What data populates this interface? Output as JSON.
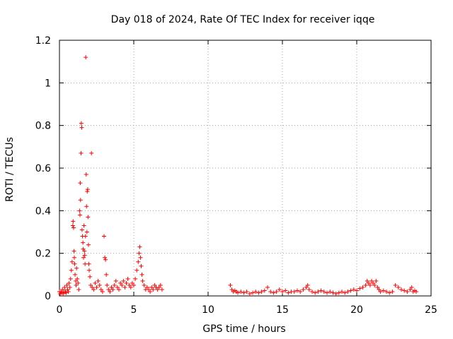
{
  "chart_data": {
    "type": "scatter",
    "title": "Day 018 of 2024, Rate Of TEC Index for receiver iqqe",
    "xlabel": "GPS time / hours",
    "ylabel": "ROTI / TECUs",
    "xlim": [
      0,
      25
    ],
    "ylim": [
      0,
      1.2
    ],
    "xticks": [
      0,
      5,
      10,
      15,
      20,
      25
    ],
    "yticks": [
      0,
      0.2,
      0.4,
      0.6,
      0.8,
      1,
      1.2
    ],
    "xtick_labels": [
      "0",
      "5",
      "10",
      "15",
      "20",
      "25"
    ],
    "ytick_labels": [
      "0",
      "0.2",
      "0.4",
      "0.6",
      "0.8",
      "1",
      "1.2"
    ],
    "grid": true,
    "legend": "none",
    "marker": "plus",
    "color": "#ff0000",
    "series": [
      {
        "points": [
          [
            0.0,
            0.02
          ],
          [
            0.05,
            0.01
          ],
          [
            0.1,
            0.02
          ],
          [
            0.15,
            0.015
          ],
          [
            0.2,
            0.03
          ],
          [
            0.25,
            0.01
          ],
          [
            0.3,
            0.02
          ],
          [
            0.35,
            0.04
          ],
          [
            0.4,
            0.02
          ],
          [
            0.45,
            0.015
          ],
          [
            0.5,
            0.05
          ],
          [
            0.55,
            0.03
          ],
          [
            0.6,
            0.02
          ],
          [
            0.65,
            0.06
          ],
          [
            0.7,
            0.04
          ],
          [
            0.75,
            0.08
          ],
          [
            0.8,
            0.12
          ],
          [
            0.85,
            0.16
          ],
          [
            0.9,
            0.33
          ],
          [
            0.92,
            0.35
          ],
          [
            0.95,
            0.32
          ],
          [
            0.98,
            0.21
          ],
          [
            1.0,
            0.18
          ],
          [
            1.02,
            0.15
          ],
          [
            1.05,
            0.1
          ],
          [
            1.1,
            0.07
          ],
          [
            1.12,
            0.05
          ],
          [
            1.15,
            0.13
          ],
          [
            1.2,
            0.08
          ],
          [
            1.25,
            0.06
          ],
          [
            1.3,
            0.03
          ],
          [
            1.35,
            0.4
          ],
          [
            1.38,
            0.38
          ],
          [
            1.4,
            0.53
          ],
          [
            1.42,
            0.45
          ],
          [
            1.45,
            0.67
          ],
          [
            1.47,
            0.81
          ],
          [
            1.5,
            0.79
          ],
          [
            1.52,
            0.31
          ],
          [
            1.55,
            0.28
          ],
          [
            1.58,
            0.25
          ],
          [
            1.6,
            0.22
          ],
          [
            1.62,
            0.18
          ],
          [
            1.65,
            0.33
          ],
          [
            1.68,
            0.21
          ],
          [
            1.7,
            0.19
          ],
          [
            1.72,
            0.15
          ],
          [
            1.75,
            0.28
          ],
          [
            1.77,
            1.12
          ],
          [
            1.8,
            0.57
          ],
          [
            1.82,
            0.42
          ],
          [
            1.85,
            0.3
          ],
          [
            1.87,
            0.49
          ],
          [
            1.9,
            0.5
          ],
          [
            1.92,
            0.37
          ],
          [
            1.95,
            0.24
          ],
          [
            1.98,
            0.15
          ],
          [
            2.0,
            0.12
          ],
          [
            2.05,
            0.09
          ],
          [
            2.1,
            0.05
          ],
          [
            2.15,
            0.67
          ],
          [
            2.2,
            0.04
          ],
          [
            2.3,
            0.03
          ],
          [
            2.4,
            0.06
          ],
          [
            2.5,
            0.04
          ],
          [
            2.6,
            0.07
          ],
          [
            2.7,
            0.05
          ],
          [
            2.8,
            0.03
          ],
          [
            2.9,
            0.02
          ],
          [
            3.0,
            0.28
          ],
          [
            3.05,
            0.18
          ],
          [
            3.1,
            0.17
          ],
          [
            3.15,
            0.1
          ],
          [
            3.2,
            0.05
          ],
          [
            3.3,
            0.03
          ],
          [
            3.4,
            0.02
          ],
          [
            3.5,
            0.04
          ],
          [
            3.6,
            0.03
          ],
          [
            3.7,
            0.05
          ],
          [
            3.8,
            0.07
          ],
          [
            3.9,
            0.04
          ],
          [
            4.0,
            0.03
          ],
          [
            4.1,
            0.06
          ],
          [
            4.2,
            0.05
          ],
          [
            4.3,
            0.07
          ],
          [
            4.4,
            0.04
          ],
          [
            4.5,
            0.06
          ],
          [
            4.6,
            0.08
          ],
          [
            4.7,
            0.05
          ],
          [
            4.8,
            0.04
          ],
          [
            4.9,
            0.06
          ],
          [
            5.0,
            0.05
          ],
          [
            5.1,
            0.08
          ],
          [
            5.2,
            0.12
          ],
          [
            5.3,
            0.16
          ],
          [
            5.35,
            0.2
          ],
          [
            5.4,
            0.23
          ],
          [
            5.45,
            0.18
          ],
          [
            5.5,
            0.14
          ],
          [
            5.55,
            0.1
          ],
          [
            5.6,
            0.07
          ],
          [
            5.7,
            0.05
          ],
          [
            5.8,
            0.03
          ],
          [
            5.9,
            0.04
          ],
          [
            6.0,
            0.03
          ],
          [
            6.1,
            0.02
          ],
          [
            6.2,
            0.04
          ],
          [
            6.3,
            0.03
          ],
          [
            6.4,
            0.05
          ],
          [
            6.5,
            0.04
          ],
          [
            6.6,
            0.03
          ],
          [
            6.7,
            0.04
          ],
          [
            6.8,
            0.05
          ],
          [
            6.9,
            0.03
          ],
          [
            11.5,
            0.05
          ],
          [
            11.6,
            0.03
          ],
          [
            11.7,
            0.02
          ],
          [
            11.8,
            0.025
          ],
          [
            11.9,
            0.02
          ],
          [
            12.0,
            0.015
          ],
          [
            12.2,
            0.02
          ],
          [
            12.4,
            0.015
          ],
          [
            12.6,
            0.02
          ],
          [
            12.8,
            0.01
          ],
          [
            13.0,
            0.015
          ],
          [
            13.2,
            0.02
          ],
          [
            13.4,
            0.015
          ],
          [
            13.6,
            0.02
          ],
          [
            13.8,
            0.025
          ],
          [
            14.0,
            0.04
          ],
          [
            14.2,
            0.02
          ],
          [
            14.4,
            0.015
          ],
          [
            14.6,
            0.02
          ],
          [
            14.8,
            0.03
          ],
          [
            15.0,
            0.02
          ],
          [
            15.2,
            0.025
          ],
          [
            15.4,
            0.015
          ],
          [
            15.6,
            0.02
          ],
          [
            15.8,
            0.02
          ],
          [
            16.0,
            0.025
          ],
          [
            16.2,
            0.02
          ],
          [
            16.4,
            0.03
          ],
          [
            16.6,
            0.04
          ],
          [
            16.7,
            0.05
          ],
          [
            16.8,
            0.03
          ],
          [
            17.0,
            0.02
          ],
          [
            17.2,
            0.015
          ],
          [
            17.4,
            0.02
          ],
          [
            17.6,
            0.025
          ],
          [
            17.8,
            0.02
          ],
          [
            18.0,
            0.015
          ],
          [
            18.2,
            0.02
          ],
          [
            18.4,
            0.015
          ],
          [
            18.6,
            0.01
          ],
          [
            18.8,
            0.015
          ],
          [
            19.0,
            0.02
          ],
          [
            19.2,
            0.015
          ],
          [
            19.4,
            0.02
          ],
          [
            19.6,
            0.025
          ],
          [
            19.8,
            0.03
          ],
          [
            20.0,
            0.025
          ],
          [
            20.2,
            0.035
          ],
          [
            20.4,
            0.04
          ],
          [
            20.6,
            0.05
          ],
          [
            20.7,
            0.07
          ],
          [
            20.8,
            0.06
          ],
          [
            20.9,
            0.05
          ],
          [
            21.0,
            0.07
          ],
          [
            21.1,
            0.06
          ],
          [
            21.2,
            0.05
          ],
          [
            21.3,
            0.07
          ],
          [
            21.4,
            0.04
          ],
          [
            21.5,
            0.03
          ],
          [
            21.6,
            0.02
          ],
          [
            21.8,
            0.025
          ],
          [
            22.0,
            0.02
          ],
          [
            22.2,
            0.015
          ],
          [
            22.4,
            0.02
          ],
          [
            22.6,
            0.05
          ],
          [
            22.8,
            0.04
          ],
          [
            23.0,
            0.03
          ],
          [
            23.2,
            0.025
          ],
          [
            23.4,
            0.02
          ],
          [
            23.6,
            0.03
          ],
          [
            23.7,
            0.04
          ],
          [
            23.8,
            0.02
          ],
          [
            23.9,
            0.025
          ],
          [
            24.0,
            0.02
          ]
        ]
      }
    ]
  }
}
